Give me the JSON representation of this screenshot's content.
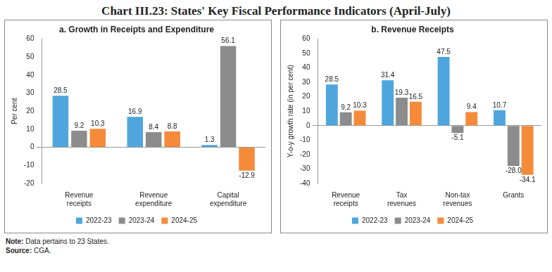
{
  "title": "Chart III.23: States' Key Fiscal Performance Indicators (April-July)",
  "note": "Note: Data pertains to 23 States.",
  "source": "Source: CGA.",
  "chart_data": [
    {
      "type": "bar",
      "title": "a. Growth in Receipts and Expenditure",
      "y_label": "Per cent",
      "categories": [
        "Revenue receipts",
        "Revenue expenditure",
        "Capital expenditure"
      ],
      "series": [
        {
          "name": "2022-23",
          "color": "#4ea6dc",
          "values": [
            28.5,
            16.9,
            1.3
          ]
        },
        {
          "name": "2023-24",
          "color": "#8c8c8c",
          "values": [
            9.2,
            8.4,
            56.1
          ]
        },
        {
          "name": "2024-25",
          "color": "#f58a3a",
          "values": [
            10.3,
            8.8,
            -12.9
          ]
        }
      ],
      "ylim": [
        -20,
        60
      ],
      "yticks": [
        -20,
        -10,
        0,
        10,
        20,
        30,
        40,
        50,
        60
      ],
      "grid": false,
      "legend": "bottom",
      "data_labels": true
    },
    {
      "type": "bar",
      "title": "b. Revenue Receipts",
      "y_label": "Y-o-y growth rate (in per cent)",
      "categories": [
        "Revenue receipts",
        "Tax revenues",
        "Non-tax revenues",
        "Grants"
      ],
      "series": [
        {
          "name": "2022-23",
          "color": "#4ea6dc",
          "values": [
            28.5,
            31.4,
            47.5,
            10.7
          ]
        },
        {
          "name": "2023-24",
          "color": "#8c8c8c",
          "values": [
            9.2,
            19.3,
            -5.1,
            -28.0
          ],
          "value_labels": [
            "9.2",
            "19.3",
            "-5.1",
            "-28.0"
          ]
        },
        {
          "name": "2024-25",
          "color": "#f58a3a",
          "values": [
            10.3,
            16.5,
            9.4,
            -34.1
          ]
        }
      ],
      "ylim": [
        -40,
        60
      ],
      "yticks": [
        -40,
        -30,
        -20,
        -10,
        0,
        10,
        20,
        30,
        40,
        50,
        60
      ],
      "grid": false,
      "legend": "bottom",
      "data_labels": true
    }
  ]
}
